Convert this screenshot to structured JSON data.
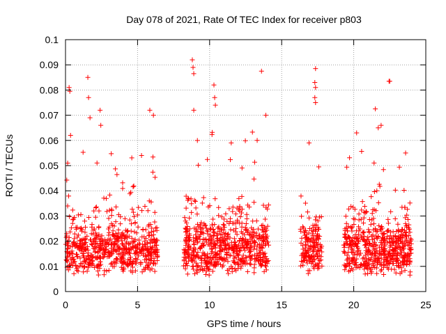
{
  "chart_data": {
    "type": "scatter",
    "title": "Day 078 of 2021, Rate Of TEC Index for receiver p803",
    "xlabel": "GPS time / hours",
    "ylabel": "ROTI / TECUs",
    "xlim": [
      0,
      25
    ],
    "ylim": [
      0,
      0.1
    ],
    "x_ticks": [
      0,
      5,
      10,
      15,
      20,
      25
    ],
    "x_tick_labels": [
      "0",
      "5",
      "10",
      "15",
      "20",
      "25"
    ],
    "y_ticks": [
      0,
      0.01,
      0.02,
      0.03,
      0.04,
      0.05,
      0.06,
      0.07,
      0.08,
      0.09,
      0.1
    ],
    "y_tick_labels": [
      "0",
      "0.01",
      "0.02",
      "0.03",
      "0.04",
      "0.05",
      "0.06",
      "0.07",
      "0.08",
      "0.09",
      "0.1"
    ],
    "grid": true,
    "marker": "+",
    "color": "#ff0000",
    "segments": [
      {
        "start": 0.0,
        "end": 6.4,
        "points": 650,
        "base": 0.014,
        "spread": 0.03
      },
      {
        "start": 8.2,
        "end": 14.1,
        "points": 650,
        "base": 0.016,
        "spread": 0.035
      },
      {
        "start": 16.3,
        "end": 17.8,
        "points": 170,
        "base": 0.014,
        "spread": 0.025
      },
      {
        "start": 19.3,
        "end": 24.0,
        "points": 560,
        "base": 0.015,
        "spread": 0.03
      }
    ],
    "outliers": [
      {
        "x": 0.15,
        "y": 0.051
      },
      {
        "x": 0.25,
        "y": 0.081
      },
      {
        "x": 0.3,
        "y": 0.0795
      },
      {
        "x": 0.35,
        "y": 0.062
      },
      {
        "x": 1.55,
        "y": 0.085
      },
      {
        "x": 1.6,
        "y": 0.077
      },
      {
        "x": 1.7,
        "y": 0.069
      },
      {
        "x": 2.4,
        "y": 0.072
      },
      {
        "x": 2.45,
        "y": 0.066
      },
      {
        "x": 5.85,
        "y": 0.072
      },
      {
        "x": 6.1,
        "y": 0.07
      },
      {
        "x": 8.8,
        "y": 0.092
      },
      {
        "x": 8.85,
        "y": 0.089
      },
      {
        "x": 8.9,
        "y": 0.0865
      },
      {
        "x": 8.9,
        "y": 0.072
      },
      {
        "x": 10.3,
        "y": 0.082
      },
      {
        "x": 10.35,
        "y": 0.077
      },
      {
        "x": 10.4,
        "y": 0.074
      },
      {
        "x": 13.6,
        "y": 0.0875
      },
      {
        "x": 13.9,
        "y": 0.07
      },
      {
        "x": 11.5,
        "y": 0.059
      },
      {
        "x": 13.3,
        "y": 0.06
      },
      {
        "x": 16.9,
        "y": 0.059
      },
      {
        "x": 17.35,
        "y": 0.0885
      },
      {
        "x": 17.3,
        "y": 0.083
      },
      {
        "x": 17.35,
        "y": 0.081
      },
      {
        "x": 17.3,
        "y": 0.077
      },
      {
        "x": 17.35,
        "y": 0.075
      },
      {
        "x": 22.45,
        "y": 0.0835
      },
      {
        "x": 22.5,
        "y": 0.0835
      },
      {
        "x": 21.5,
        "y": 0.0725
      },
      {
        "x": 20.2,
        "y": 0.063
      },
      {
        "x": 21.7,
        "y": 0.065
      },
      {
        "x": 21.9,
        "y": 0.066
      },
      {
        "x": 23.6,
        "y": 0.055
      }
    ]
  }
}
